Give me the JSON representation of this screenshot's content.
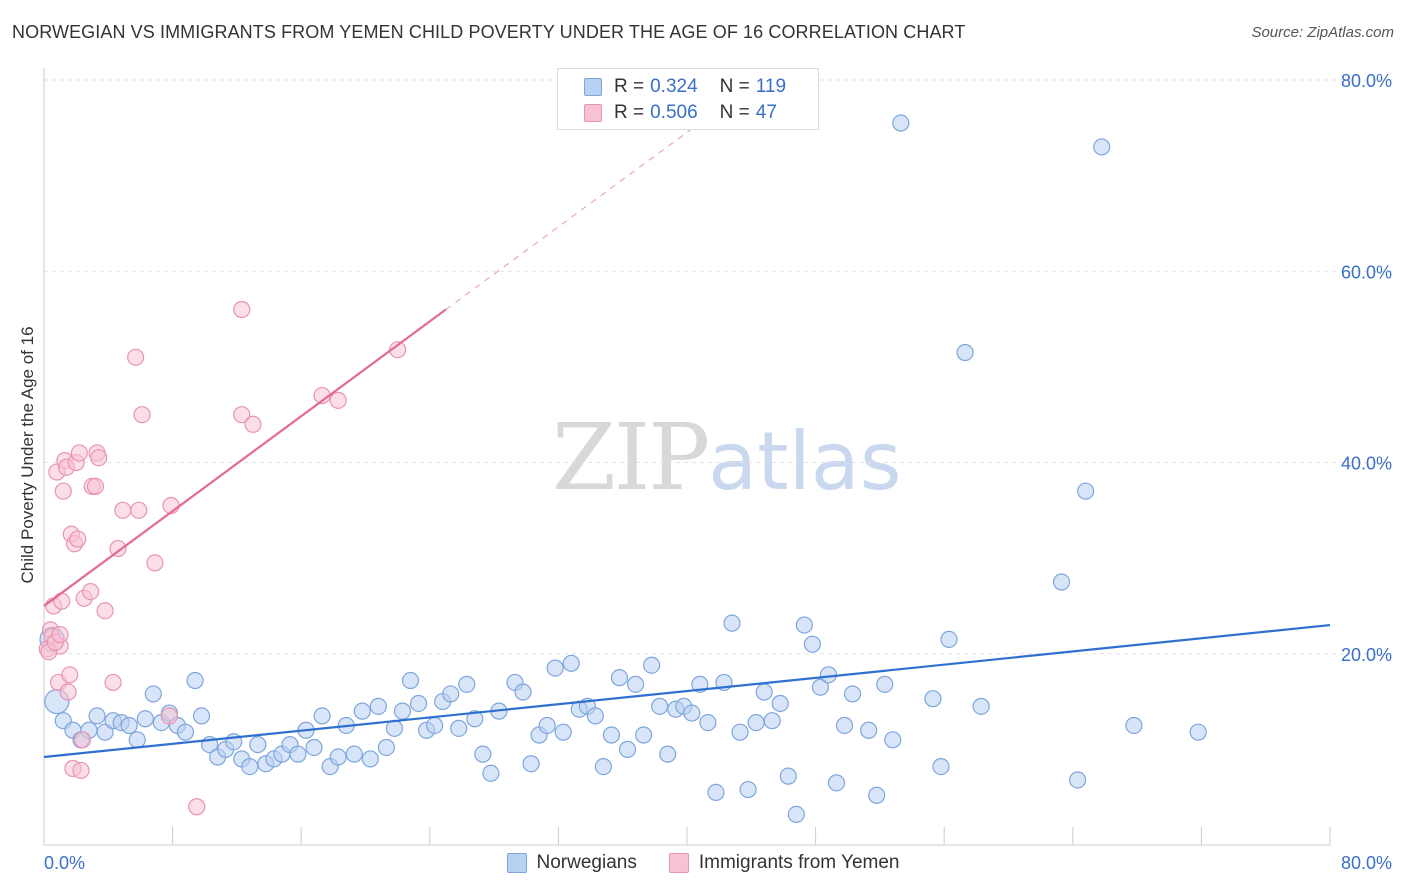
{
  "title": "NORWEGIAN VS IMMIGRANTS FROM YEMEN CHILD POVERTY UNDER THE AGE OF 16 CORRELATION CHART",
  "source": "Source: ZipAtlas.com",
  "watermark": {
    "zip": "ZIP",
    "atlas": "atlas"
  },
  "legend_top": {
    "r_label": "R =",
    "n_label": "N =",
    "rows": [
      {
        "r": "0.324",
        "n": "119"
      },
      {
        "r": "0.506",
        "n": "47"
      }
    ]
  },
  "legend_bottom": [
    "Norwegians",
    "Immigrants from Yemen"
  ],
  "colors": {
    "blue_fill": "#b8d0f2",
    "blue_stroke": "#7ea6dc",
    "blue_line": "#2f6fcf",
    "pink_fill": "#f7c3d4",
    "pink_stroke": "#e895b2",
    "pink_line": "#e26a93",
    "tick_text": "#3a6fc9"
  },
  "chart_data": {
    "type": "scatter",
    "title": "NORWEGIAN VS IMMIGRANTS FROM YEMEN CHILD POVERTY UNDER THE AGE OF 16 CORRELATION CHART",
    "xlabel": "",
    "ylabel": "Child Poverty Under the Age of 16",
    "xlim": [
      0,
      80
    ],
    "ylim": [
      0,
      80
    ],
    "x_tick_labels": [
      "0.0%",
      "80.0%"
    ],
    "y_tick_labels": [
      "20.0%",
      "40.0%",
      "60.0%",
      "80.0%"
    ],
    "y_ticks": [
      20,
      40,
      60,
      80
    ],
    "grid": true,
    "legend_placement": "top-center",
    "series": [
      {
        "name": "Norwegians",
        "R": 0.324,
        "N": 119,
        "trend": {
          "x": [
            0,
            80
          ],
          "y": [
            9.2,
            23.0
          ],
          "style": "solid"
        },
        "points": [
          [
            0.5,
            21.5
          ],
          [
            0.8,
            15.0
          ],
          [
            1.2,
            13.0
          ],
          [
            1.8,
            12.0
          ],
          [
            2.3,
            11.0
          ],
          [
            2.8,
            12.0
          ],
          [
            3.3,
            13.5
          ],
          [
            3.8,
            11.8
          ],
          [
            4.3,
            13.0
          ],
          [
            4.8,
            12.8
          ],
          [
            5.3,
            12.5
          ],
          [
            5.8,
            11.0
          ],
          [
            6.3,
            13.2
          ],
          [
            6.8,
            15.8
          ],
          [
            7.3,
            12.8
          ],
          [
            7.8,
            13.8
          ],
          [
            8.3,
            12.5
          ],
          [
            8.8,
            11.8
          ],
          [
            9.4,
            17.2
          ],
          [
            9.8,
            13.5
          ],
          [
            10.3,
            10.5
          ],
          [
            10.8,
            9.2
          ],
          [
            11.3,
            10.0
          ],
          [
            11.8,
            10.8
          ],
          [
            12.3,
            9.0
          ],
          [
            12.8,
            8.2
          ],
          [
            13.3,
            10.5
          ],
          [
            13.8,
            8.5
          ],
          [
            14.3,
            9.0
          ],
          [
            14.8,
            9.5
          ],
          [
            15.3,
            10.5
          ],
          [
            15.8,
            9.5
          ],
          [
            16.3,
            12.0
          ],
          [
            16.8,
            10.2
          ],
          [
            17.3,
            13.5
          ],
          [
            17.8,
            8.2
          ],
          [
            18.3,
            9.2
          ],
          [
            18.8,
            12.5
          ],
          [
            19.3,
            9.5
          ],
          [
            19.8,
            14.0
          ],
          [
            20.3,
            9.0
          ],
          [
            20.8,
            14.5
          ],
          [
            21.3,
            10.2
          ],
          [
            21.8,
            12.2
          ],
          [
            22.3,
            14.0
          ],
          [
            22.8,
            17.2
          ],
          [
            23.3,
            14.8
          ],
          [
            23.8,
            12.0
          ],
          [
            24.3,
            12.5
          ],
          [
            24.8,
            15.0
          ],
          [
            25.3,
            15.8
          ],
          [
            25.8,
            12.2
          ],
          [
            26.3,
            16.8
          ],
          [
            26.8,
            13.2
          ],
          [
            27.3,
            9.5
          ],
          [
            27.8,
            7.5
          ],
          [
            28.3,
            14.0
          ],
          [
            29.3,
            17.0
          ],
          [
            29.8,
            16.0
          ],
          [
            30.3,
            8.5
          ],
          [
            30.8,
            11.5
          ],
          [
            31.3,
            12.5
          ],
          [
            31.8,
            18.5
          ],
          [
            32.3,
            11.8
          ],
          [
            32.8,
            19.0
          ],
          [
            33.3,
            14.2
          ],
          [
            33.8,
            14.5
          ],
          [
            34.3,
            13.5
          ],
          [
            34.8,
            8.2
          ],
          [
            35.3,
            11.5
          ],
          [
            35.8,
            17.5
          ],
          [
            36.3,
            10.0
          ],
          [
            36.8,
            16.8
          ],
          [
            37.3,
            11.5
          ],
          [
            37.8,
            18.8
          ],
          [
            38.3,
            14.5
          ],
          [
            38.8,
            9.5
          ],
          [
            39.3,
            14.2
          ],
          [
            39.8,
            14.5
          ],
          [
            40.3,
            13.8
          ],
          [
            40.8,
            16.8
          ],
          [
            41.3,
            12.8
          ],
          [
            41.8,
            5.5
          ],
          [
            42.3,
            17.0
          ],
          [
            42.8,
            23.2
          ],
          [
            43.3,
            11.8
          ],
          [
            43.8,
            5.8
          ],
          [
            44.3,
            12.8
          ],
          [
            44.8,
            16.0
          ],
          [
            45.3,
            13.0
          ],
          [
            45.8,
            14.8
          ],
          [
            46.3,
            7.2
          ],
          [
            46.8,
            3.2
          ],
          [
            47.3,
            23.0
          ],
          [
            47.8,
            21.0
          ],
          [
            48.3,
            16.5
          ],
          [
            48.8,
            17.8
          ],
          [
            49.3,
            6.5
          ],
          [
            49.8,
            12.5
          ],
          [
            50.3,
            15.8
          ],
          [
            51.3,
            12.0
          ],
          [
            51.8,
            5.2
          ],
          [
            52.3,
            16.8
          ],
          [
            52.8,
            11.0
          ],
          [
            53.3,
            75.5
          ],
          [
            55.3,
            15.3
          ],
          [
            55.8,
            8.2
          ],
          [
            56.3,
            21.5
          ],
          [
            57.3,
            51.5
          ],
          [
            58.3,
            14.5
          ],
          [
            63.3,
            27.5
          ],
          [
            64.3,
            6.8
          ],
          [
            64.8,
            37.0
          ],
          [
            65.8,
            73.0
          ],
          [
            67.8,
            12.5
          ],
          [
            71.8,
            11.8
          ]
        ]
      },
      {
        "name": "Immigrants from Yemen",
        "R": 0.506,
        "N": 47,
        "trend": {
          "x": [
            0,
            25
          ],
          "y": [
            25.0,
            56.0
          ],
          "style": "solid",
          "extension": {
            "x": [
              25,
              42
            ],
            "y": [
              56.0,
              77.0
            ],
            "style": "dashed"
          }
        },
        "points": [
          [
            0.2,
            20.5
          ],
          [
            0.4,
            22.5
          ],
          [
            0.5,
            21.8
          ],
          [
            0.6,
            25.0
          ],
          [
            0.8,
            39.0
          ],
          [
            0.9,
            17.0
          ],
          [
            1.0,
            20.8
          ],
          [
            1.1,
            25.5
          ],
          [
            1.2,
            37.0
          ],
          [
            1.3,
            40.2
          ],
          [
            1.4,
            39.5
          ],
          [
            1.5,
            16.0
          ],
          [
            1.6,
            17.8
          ],
          [
            1.7,
            32.5
          ],
          [
            1.8,
            8.0
          ],
          [
            1.9,
            31.5
          ],
          [
            2.0,
            40.0
          ],
          [
            2.1,
            32.0
          ],
          [
            2.2,
            41.0
          ],
          [
            2.3,
            7.8
          ],
          [
            2.4,
            11.0
          ],
          [
            2.5,
            25.8
          ],
          [
            2.9,
            26.5
          ],
          [
            3.0,
            37.5
          ],
          [
            3.2,
            37.5
          ],
          [
            3.3,
            41.0
          ],
          [
            3.4,
            40.5
          ],
          [
            3.8,
            24.5
          ],
          [
            4.3,
            17.0
          ],
          [
            4.6,
            31.0
          ],
          [
            4.9,
            35.0
          ],
          [
            5.9,
            35.0
          ],
          [
            5.7,
            51.0
          ],
          [
            6.1,
            45.0
          ],
          [
            6.9,
            29.5
          ],
          [
            7.8,
            13.5
          ],
          [
            7.9,
            35.5
          ],
          [
            9.5,
            4.0
          ],
          [
            12.3,
            56.0
          ],
          [
            12.3,
            45.0
          ],
          [
            13.0,
            44.0
          ],
          [
            17.3,
            47.0
          ],
          [
            18.3,
            46.5
          ],
          [
            22.0,
            51.8
          ],
          [
            0.3,
            20.2
          ],
          [
            0.7,
            21.2
          ],
          [
            1.0,
            22.0
          ]
        ]
      }
    ]
  }
}
